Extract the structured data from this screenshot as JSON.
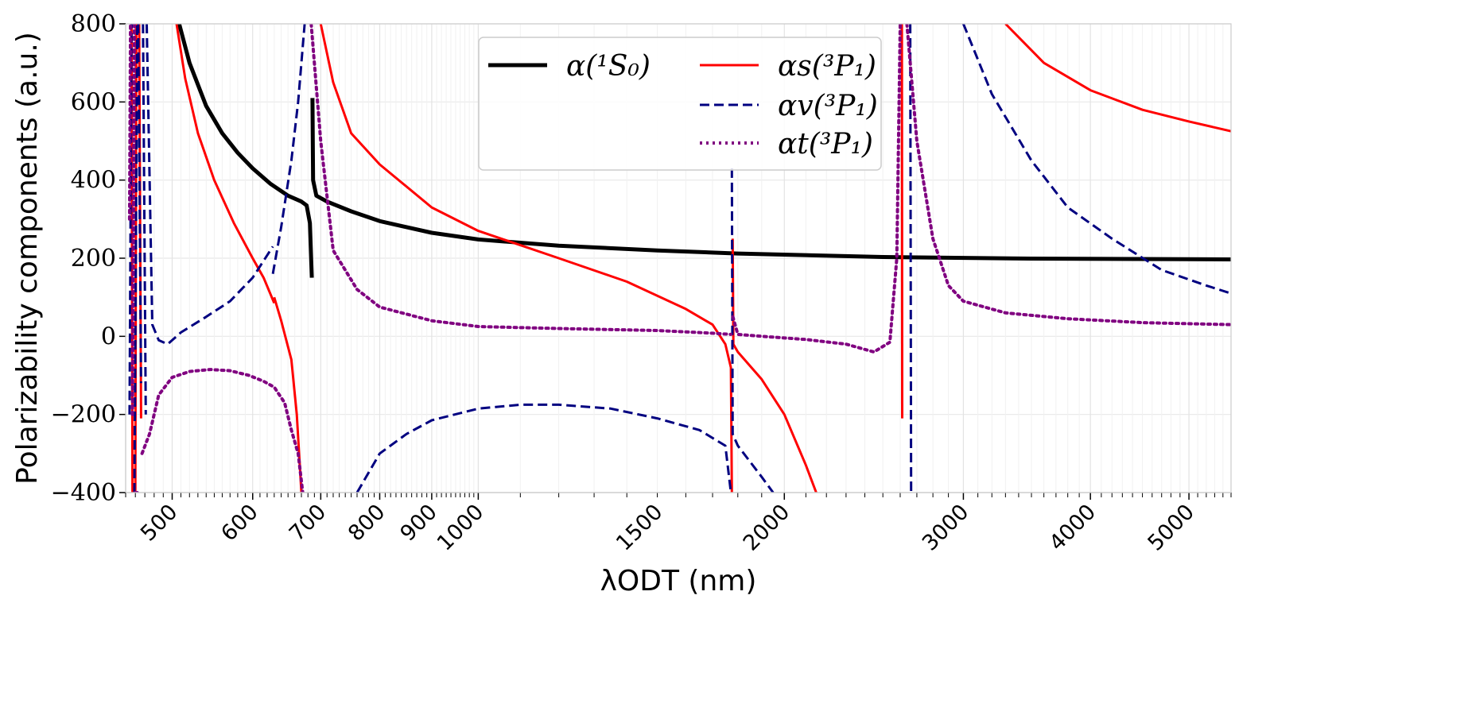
{
  "chart_data": {
    "type": "line",
    "xlabel": "λODT (nm)",
    "ylabel": "Polarizability components (a.u.)",
    "xscale": "log",
    "xlim": [
      450,
      5500
    ],
    "ylim": [
      -400,
      800
    ],
    "grid": true,
    "legend_placement": "top-center",
    "yticks": [
      "800",
      "600",
      "400",
      "200",
      "0",
      "−200",
      "−400"
    ],
    "xticks": [
      "500",
      "600",
      "700",
      "800",
      "900",
      "1000",
      "1500",
      "2000",
      "3000",
      "4000",
      "5000"
    ],
    "series": [
      {
        "name": "α(¹S₀)",
        "color": "#000000",
        "style": "solid",
        "width": 5,
        "segments": [
          [
            [
              508,
              800
            ],
            [
              520,
              700
            ],
            [
              540,
              590
            ],
            [
              560,
              520
            ],
            [
              580,
              470
            ],
            [
              600,
              430
            ],
            [
              625,
              390
            ],
            [
              650,
              360
            ],
            [
              670,
              345
            ],
            [
              678,
              335
            ],
            [
              683,
              290
            ],
            [
              686,
              150
            ]
          ],
          [
            [
              687,
              610
            ],
            [
              688,
              400
            ],
            [
              693,
              360
            ],
            [
              710,
              345
            ],
            [
              750,
              320
            ],
            [
              800,
              295
            ],
            [
              900,
              265
            ],
            [
              1000,
              248
            ],
            [
              1200,
              232
            ],
            [
              1500,
              220
            ],
            [
              1800,
              212
            ],
            [
              2500,
              203
            ],
            [
              3500,
              199
            ],
            [
              5500,
              197
            ]
          ]
        ]
      },
      {
        "name": "αs(³P₁)",
        "color": "#ff0000",
        "style": "solid",
        "width": 3,
        "segments": [
          [
            [
              456,
              800
            ],
            [
              457,
              -400
            ]
          ],
          [
            [
              460,
              -400
            ],
            [
              461,
              800
            ]
          ],
          [
            [
              464,
              800
            ],
            [
              466,
              -210
            ]
          ],
          [
            [
              505,
              800
            ],
            [
              515,
              660
            ],
            [
              530,
              520
            ],
            [
              550,
              400
            ],
            [
              575,
              290
            ],
            [
              600,
              200
            ],
            [
              615,
              150
            ],
            [
              630,
              85
            ]
          ],
          [
            [
              630,
              100
            ],
            [
              640,
              40
            ],
            [
              655,
              -60
            ],
            [
              663,
              -200
            ],
            [
              670,
              -400
            ]
          ],
          [
            [
              700,
              800
            ],
            [
              720,
              650
            ],
            [
              750,
              520
            ],
            [
              800,
              440
            ],
            [
              900,
              330
            ],
            [
              1000,
              270
            ],
            [
              1200,
              200
            ],
            [
              1400,
              140
            ],
            [
              1600,
              70
            ],
            [
              1700,
              30
            ],
            [
              1750,
              -20
            ],
            [
              1772,
              -80
            ],
            [
              1776,
              -400
            ]
          ],
          [
            [
              1779,
              250
            ],
            [
              1782,
              -20
            ],
            [
              1800,
              -40
            ],
            [
              1900,
              -110
            ],
            [
              2000,
              -200
            ],
            [
              2100,
              -330
            ],
            [
              2150,
              -400
            ]
          ],
          [
            [
              2610,
              800
            ],
            [
              2612,
              -210
            ]
          ],
          [
            [
              3300,
              800
            ],
            [
              3600,
              700
            ],
            [
              4000,
              630
            ],
            [
              4500,
              580
            ],
            [
              5000,
              550
            ],
            [
              5500,
              525
            ]
          ]
        ]
      },
      {
        "name": "αv(³P₁)",
        "color": "#000080",
        "style": "dashed",
        "width": 3,
        "segments": [
          [
            [
              454,
              -200
            ],
            [
              456,
              800
            ]
          ],
          [
            [
              459,
              -400
            ],
            [
              462,
              800
            ]
          ],
          [
            [
              463,
              800
            ],
            [
              466,
              -120
            ]
          ],
          [
            [
              468,
              800
            ],
            [
              471,
              -200
            ]
          ],
          [
            [
              472,
              800
            ],
            [
              478,
              30
            ],
            [
              485,
              -10
            ],
            [
              495,
              -20
            ],
            [
              510,
              10
            ],
            [
              540,
              50
            ],
            [
              570,
              90
            ],
            [
              600,
              150
            ],
            [
              628,
              230
            ]
          ],
          [
            [
              628,
              160
            ],
            [
              640,
              280
            ],
            [
              655,
              450
            ],
            [
              665,
              600
            ],
            [
              675,
              800
            ]
          ],
          [
            [
              760,
              -400
            ],
            [
              800,
              -300
            ],
            [
              850,
              -250
            ],
            [
              900,
              -215
            ],
            [
              1000,
              -185
            ],
            [
              1100,
              -175
            ],
            [
              1200,
              -175
            ],
            [
              1350,
              -185
            ],
            [
              1500,
              -210
            ],
            [
              1650,
              -240
            ],
            [
              1750,
              -280
            ],
            [
              1772,
              -400
            ]
          ],
          [
            [
              1776,
              430
            ],
            [
              1779,
              -250
            ],
            [
              1800,
              -280
            ],
            [
              1900,
              -360
            ],
            [
              1950,
              -400
            ]
          ],
          [
            [
              2660,
              800
            ],
            [
              2665,
              -400
            ]
          ],
          [
            [
              3000,
              800
            ],
            [
              3200,
              620
            ],
            [
              3500,
              450
            ],
            [
              3800,
              330
            ],
            [
              4200,
              250
            ],
            [
              4700,
              170
            ],
            [
              5200,
              130
            ],
            [
              5500,
              110
            ]
          ]
        ]
      },
      {
        "name": "αt(³P₁)",
        "color": "#800080",
        "style": "dotted",
        "width": 4,
        "segments": [
          [
            [
              454,
              300
            ],
            [
              455,
              800
            ]
          ],
          [
            [
              457,
              -200
            ],
            [
              459,
              800
            ]
          ],
          [
            [
              460,
              -400
            ],
            [
              462,
              -400
            ]
          ],
          [
            [
              467,
              -300
            ],
            [
              475,
              -250
            ],
            [
              485,
              -150
            ],
            [
              500,
              -105
            ],
            [
              520,
              -90
            ],
            [
              545,
              -85
            ],
            [
              570,
              -88
            ],
            [
              595,
              -100
            ],
            [
              615,
              -115
            ],
            [
              630,
              -130
            ],
            [
              645,
              -170
            ],
            [
              655,
              -240
            ],
            [
              665,
              -300
            ],
            [
              672,
              -400
            ]
          ],
          [
            [
              685,
              800
            ],
            [
              700,
              500
            ],
            [
              720,
              220
            ],
            [
              760,
              120
            ],
            [
              800,
              75
            ],
            [
              900,
              40
            ],
            [
              1000,
              25
            ],
            [
              1200,
              20
            ],
            [
              1500,
              15
            ],
            [
              1700,
              8
            ],
            [
              1772,
              5
            ]
          ],
          [
            [
              1780,
              50
            ],
            [
              1800,
              5
            ],
            [
              1900,
              0
            ],
            [
              2100,
              -8
            ],
            [
              2300,
              -20
            ],
            [
              2450,
              -40
            ],
            [
              2540,
              -15
            ],
            [
              2580,
              200
            ],
            [
              2600,
              800
            ]
          ],
          [
            [
              2640,
              800
            ],
            [
              2700,
              500
            ],
            [
              2800,
              250
            ],
            [
              2900,
              130
            ],
            [
              3000,
              90
            ],
            [
              3300,
              60
            ],
            [
              3800,
              45
            ],
            [
              4500,
              35
            ],
            [
              5500,
              30
            ]
          ]
        ]
      }
    ]
  },
  "legend": {
    "entries": [
      {
        "label": "α(¹S₀)",
        "color": "#000000",
        "style": "solid"
      },
      {
        "label": "αs(³P₁)",
        "color": "#ff0000",
        "style": "solid"
      },
      {
        "label": "αv(³P₁)",
        "color": "#000080",
        "style": "dashed"
      },
      {
        "label": "αt(³P₁)",
        "color": "#800080",
        "style": "dotted"
      }
    ]
  }
}
